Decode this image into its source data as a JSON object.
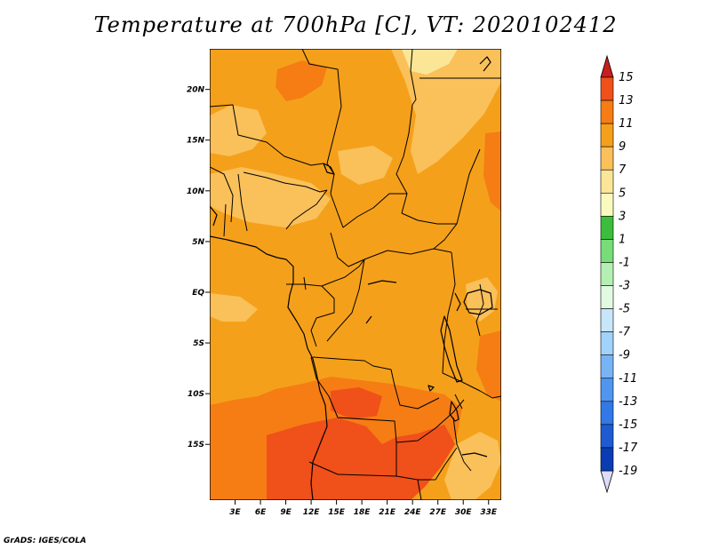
{
  "title": "Temperature at 700hPa [C], VT: 2020102412",
  "credit": "GrADS: IGES/COLA",
  "map": {
    "lon_range": [
      0,
      34.5
    ],
    "lat_range": [
      -20.5,
      24
    ],
    "lon_ticks": [
      {
        "value": 3,
        "label": "3E"
      },
      {
        "value": 6,
        "label": "6E"
      },
      {
        "value": 9,
        "label": "9E"
      },
      {
        "value": 12,
        "label": "12E"
      },
      {
        "value": 15,
        "label": "15E"
      },
      {
        "value": 18,
        "label": "18E"
      },
      {
        "value": 21,
        "label": "21E"
      },
      {
        "value": 24,
        "label": "24E"
      },
      {
        "value": 27,
        "label": "27E"
      },
      {
        "value": 30,
        "label": "30E"
      },
      {
        "value": 33,
        "label": "33E"
      }
    ],
    "lat_ticks": [
      {
        "value": 20,
        "label": "20N"
      },
      {
        "value": 15,
        "label": "15N"
      },
      {
        "value": 10,
        "label": "10N"
      },
      {
        "value": 5,
        "label": "5N"
      },
      {
        "value": 0,
        "label": "EQ"
      },
      {
        "value": -5,
        "label": "5S"
      },
      {
        "value": -10,
        "label": "10S"
      },
      {
        "value": -15,
        "label": "15S"
      }
    ],
    "base_color": "#f5a01a"
  },
  "colorbar": {
    "levels": [
      "15",
      "13",
      "11",
      "9",
      "7",
      "5",
      "3",
      "1",
      "-1",
      "-3",
      "-5",
      "-7",
      "-9",
      "-11",
      "-13",
      "-15",
      "-17",
      "-19"
    ],
    "colors": [
      "#e62a0a",
      "#f0501a",
      "#f57d14",
      "#f5a01a",
      "#fac05a",
      "#fae696",
      "#fafabe",
      "#3cbe3c",
      "#78dc78",
      "#b4f0b4",
      "#e1fae1",
      "#c8e6fa",
      "#a0d2fa",
      "#78b4f5",
      "#5096f0",
      "#3278e6",
      "#1e5ad2",
      "#0a3cb4",
      "#0a1e78"
    ],
    "top_color": "#c81e1e",
    "bottom_color": "#dcdcfa"
  }
}
